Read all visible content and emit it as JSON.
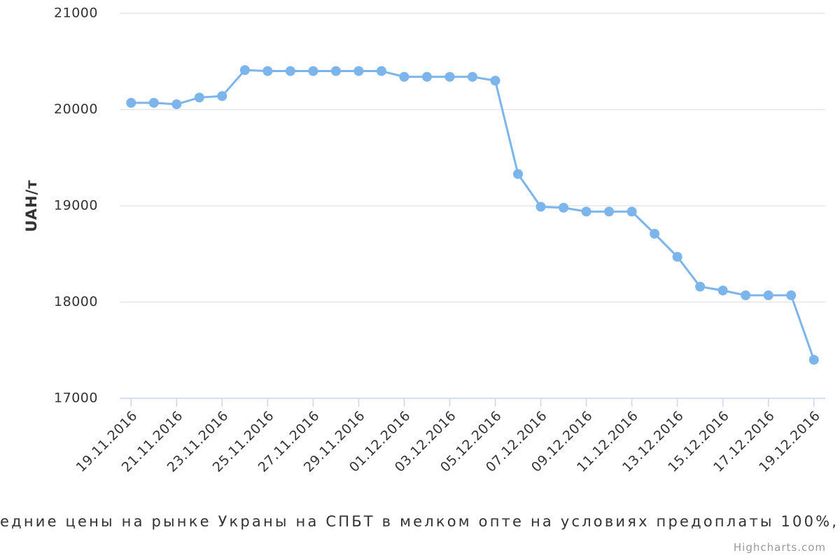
{
  "chart_data": {
    "type": "line",
    "title": "едние цены на рынке Украны на СПБТ в мелком опте на условиях предоплаты 100%,",
    "credits": "Highcharts.com",
    "y_axis_label": "UAH/т",
    "categories": [
      "19.11.2016",
      null,
      "21.11.2016",
      null,
      "23.11.2016",
      null,
      "25.11.2016",
      null,
      "27.11.2016",
      null,
      "29.11.2016",
      null,
      "01.12.2016",
      null,
      "03.12.2016",
      null,
      "05.12.2016",
      null,
      "07.12.2016",
      null,
      "09.12.2016",
      null,
      "11.12.2016",
      null,
      "13.12.2016",
      null,
      "15.12.2016",
      null,
      "17.12.2016",
      null,
      "19.12.2016"
    ],
    "series": [
      {
        "color": "#7cb5ec",
        "values": [
          20070,
          20070,
          20055,
          20125,
          20140,
          20410,
          20400,
          20400,
          20400,
          20400,
          20400,
          20400,
          20340,
          20340,
          20340,
          20340,
          20300,
          19330,
          18990,
          18980,
          18940,
          18940,
          18940,
          18710,
          18470,
          18160,
          18120,
          18070,
          18070,
          18070,
          17400
        ]
      }
    ],
    "ylim": [
      17000,
      21000
    ],
    "yticks": [
      17000,
      18000,
      19000,
      20000,
      21000
    ],
    "grid": true
  }
}
